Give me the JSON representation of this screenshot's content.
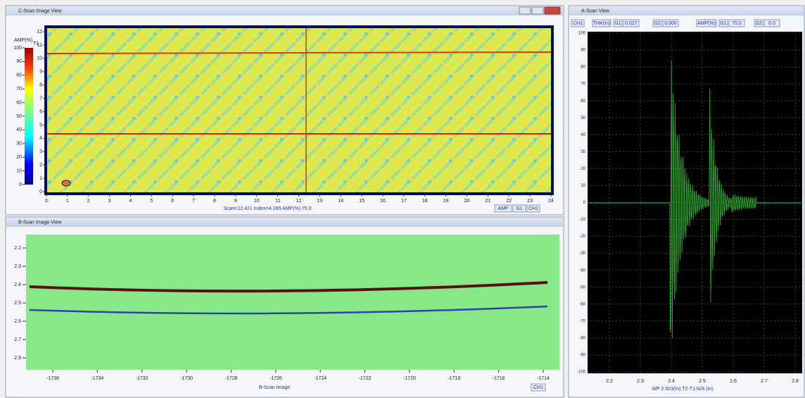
{
  "cscan": {
    "title": "C-Scan Image View",
    "colorbar_label": "AMP(%)",
    "colorbar_ticks": [
      100,
      90,
      80,
      70,
      60,
      50,
      40,
      30,
      20,
      10,
      0
    ],
    "y_ticks": [
      0,
      1,
      2,
      3,
      4,
      5,
      6,
      7,
      8,
      9,
      10,
      11,
      12
    ],
    "gate_marker": "T1",
    "x_ticks": [
      0,
      1,
      2,
      3,
      4,
      5,
      6,
      7,
      8,
      9,
      10,
      11,
      12,
      13,
      14,
      15,
      16,
      17,
      18,
      19,
      20,
      21,
      22,
      23,
      24
    ],
    "status": "Scan=12.421 Index=4.285 AMP(%) 75.0",
    "tabs": [
      "AMP",
      "G1",
      "CH1"
    ]
  },
  "bscan": {
    "title": "B-Scan Image View",
    "y_ticks": [
      2.2,
      2.3,
      2.4,
      2.5,
      2.6,
      2.7,
      2.8
    ],
    "x_ticks": [
      -1736,
      -1734,
      -1732,
      -1730,
      -1728,
      -1726,
      -1724,
      -1722,
      -1720,
      -1718,
      -1716,
      -1714
    ],
    "footer": "B-Scan Image",
    "tab": "CH1"
  },
  "ascan": {
    "title": "A-Scan View",
    "channel": "CH1",
    "thk_label": "THK(In)",
    "thk_g1_label": "G1",
    "thk_g1": "0.027",
    "thk_g2_label": "G2",
    "thk_g2": "0.000",
    "amp_label": "AMP(%)",
    "amp_g1_label": "G1",
    "amp_g1": "75.0",
    "amp_g2_label": "G2",
    "amp_g2": "0.0",
    "y_ticks": [
      100,
      90,
      80,
      70,
      60,
      50,
      40,
      30,
      20,
      10,
      0,
      -10,
      -20,
      -30,
      -40,
      -50,
      -60,
      -70,
      -80,
      -90,
      -100
    ],
    "x_ticks": [
      2.2,
      2.3,
      2.4,
      2.5,
      2.6,
      2.7,
      2.8
    ],
    "footer": "WP 2.503(In) T2-T1:N/A (In)"
  }
}
